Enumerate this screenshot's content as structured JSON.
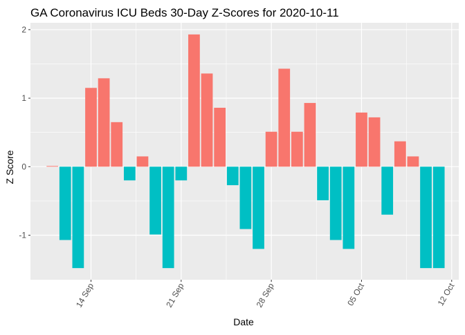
{
  "chart_data": {
    "type": "bar",
    "title": "GA Coronavirus ICU Beds 30-Day Z-Scores for 2020-10-11",
    "xlabel": "Date",
    "ylabel": "Z Score",
    "x_axis": {
      "type": "date",
      "min": "2020-09-10",
      "max": "2020-10-12",
      "ticks": [
        "2020-09-14",
        "2020-09-21",
        "2020-09-28",
        "2020-10-05",
        "2020-10-12"
      ],
      "tick_labels": [
        "14 Sep",
        "21 Sep",
        "28 Sep",
        "05 Oct",
        "12 Oct"
      ],
      "tick_label_rotation": "angled"
    },
    "y_axis": {
      "ylim": [
        -1.65,
        2.1
      ],
      "ticks": [
        -1,
        0,
        1,
        2
      ],
      "tick_labels": [
        "-1",
        "0",
        "1",
        "2"
      ]
    },
    "grid": true,
    "legend": "none",
    "colors": {
      "positive": "#F8766D",
      "negative": "#00BFC4",
      "panel": "#EBEBEB",
      "grid": "#FFFFFF"
    },
    "x": [
      "2020-09-11",
      "2020-09-12",
      "2020-09-13",
      "2020-09-14",
      "2020-09-15",
      "2020-09-16",
      "2020-09-17",
      "2020-09-18",
      "2020-09-19",
      "2020-09-20",
      "2020-09-21",
      "2020-09-22",
      "2020-09-23",
      "2020-09-24",
      "2020-09-25",
      "2020-09-26",
      "2020-09-27",
      "2020-09-28",
      "2020-09-29",
      "2020-09-30",
      "2020-10-01",
      "2020-10-02",
      "2020-10-03",
      "2020-10-04",
      "2020-10-05",
      "2020-10-06",
      "2020-10-07",
      "2020-10-08",
      "2020-10-09",
      "2020-10-10",
      "2020-10-11"
    ],
    "values": [
      0.01,
      -1.07,
      -1.48,
      1.15,
      1.29,
      0.65,
      -0.2,
      0.15,
      -0.99,
      -1.48,
      -0.2,
      1.93,
      1.36,
      0.86,
      -0.27,
      -0.91,
      -1.2,
      0.51,
      1.43,
      0.51,
      0.93,
      -0.49,
      -1.07,
      -1.2,
      0.79,
      0.72,
      -0.7,
      0.37,
      0.15,
      -1.48,
      -1.48
    ]
  }
}
